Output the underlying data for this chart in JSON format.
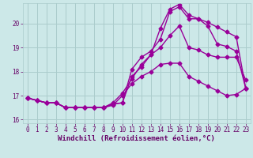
{
  "background_color": "#cce8e8",
  "grid_color": "#aacccc",
  "line_color": "#990099",
  "marker": "D",
  "markersize": 2.5,
  "linewidth": 1.0,
  "xlabel": "Windchill (Refroidissement éolien,°C)",
  "xlabel_color": "#660066",
  "xlabel_fontsize": 6.5,
  "tick_color": "#660066",
  "tick_fontsize": 5.5,
  "xlim": [
    -0.5,
    23.5
  ],
  "ylim": [
    15.85,
    20.85
  ],
  "yticks": [
    16,
    17,
    18,
    19,
    20
  ],
  "xticks": [
    0,
    1,
    2,
    3,
    4,
    5,
    6,
    7,
    8,
    9,
    10,
    11,
    12,
    13,
    14,
    15,
    16,
    17,
    18,
    19,
    20,
    21,
    22,
    23
  ],
  "curves": [
    [
      16.9,
      16.8,
      16.7,
      16.7,
      16.5,
      16.5,
      16.5,
      16.5,
      16.5,
      16.6,
      17.0,
      17.5,
      17.8,
      18.0,
      18.3,
      18.35,
      18.35,
      17.8,
      17.6,
      17.4,
      17.2,
      17.0,
      17.05,
      17.3
    ],
    [
      16.9,
      16.8,
      16.7,
      16.7,
      16.5,
      16.5,
      16.5,
      16.5,
      16.5,
      16.7,
      17.1,
      17.7,
      18.3,
      18.7,
      19.0,
      19.5,
      19.9,
      19.0,
      18.9,
      18.7,
      18.6,
      18.6,
      18.6,
      17.65
    ],
    [
      16.9,
      16.8,
      16.7,
      16.7,
      16.5,
      16.5,
      16.5,
      16.5,
      16.5,
      16.65,
      16.7,
      18.1,
      18.6,
      18.85,
      19.35,
      20.5,
      20.7,
      20.2,
      20.2,
      20.05,
      19.85,
      19.65,
      19.45,
      17.3
    ],
    [
      16.9,
      16.8,
      16.7,
      16.7,
      16.5,
      16.5,
      16.5,
      16.5,
      16.5,
      16.65,
      16.7,
      17.8,
      18.2,
      18.7,
      19.8,
      20.6,
      20.8,
      20.35,
      20.2,
      19.9,
      19.15,
      19.05,
      18.85,
      17.3
    ]
  ]
}
